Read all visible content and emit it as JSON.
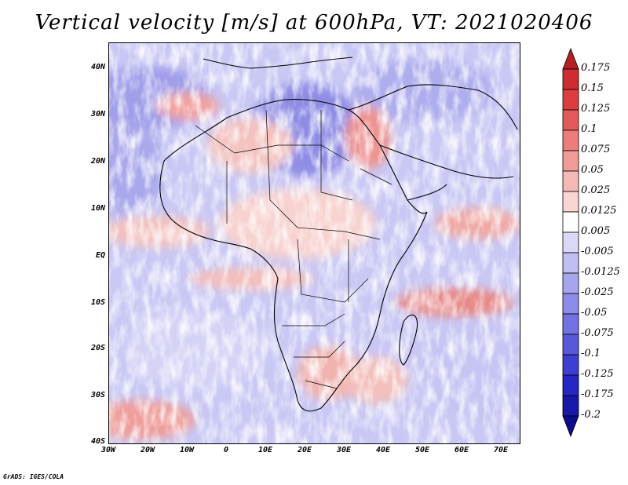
{
  "title": "Vertical velocity [m/s] at 600hPa, VT: 2021020406",
  "credit": "GrADS: IGES/COLA",
  "map": {
    "variable": "Vertical velocity",
    "units": "m/s",
    "level": "600hPa",
    "valid_time": "2021020406",
    "lat_labels": [
      "40N",
      "30N",
      "20N",
      "10N",
      "EQ",
      "10S",
      "20S",
      "30S",
      "40S"
    ],
    "lon_labels": [
      "30W",
      "20W",
      "10W",
      "0",
      "10E",
      "20E",
      "30E",
      "40E",
      "50E",
      "60E",
      "70E"
    ],
    "lat_range": [
      -40,
      45
    ],
    "lon_range": [
      -30,
      75
    ]
  },
  "colorbar": {
    "labels": [
      "0.175",
      "0.15",
      "0.125",
      "0.1",
      "0.075",
      "0.05",
      "0.025",
      "0.0125",
      "0.005",
      "-0.005",
      "-0.0125",
      "-0.025",
      "-0.05",
      "-0.075",
      "-0.1",
      "-0.125",
      "-0.175",
      "-0.2"
    ],
    "colors": [
      "#b51f24",
      "#cf2c31",
      "#dc3e40",
      "#e45a5a",
      "#ec7d7b",
      "#f19c99",
      "#f5bab6",
      "#f9d6d3",
      "#ffffff",
      "#d9d9f7",
      "#bfbff2",
      "#a6a6ee",
      "#8c8ce8",
      "#7272e2",
      "#5858da",
      "#3e3ed2",
      "#2626c6",
      "#1818a8",
      "#0c0c8c"
    ]
  },
  "icons": {
    "cbar_top": "triangle-up-icon",
    "cbar_bottom": "triangle-down-icon"
  }
}
